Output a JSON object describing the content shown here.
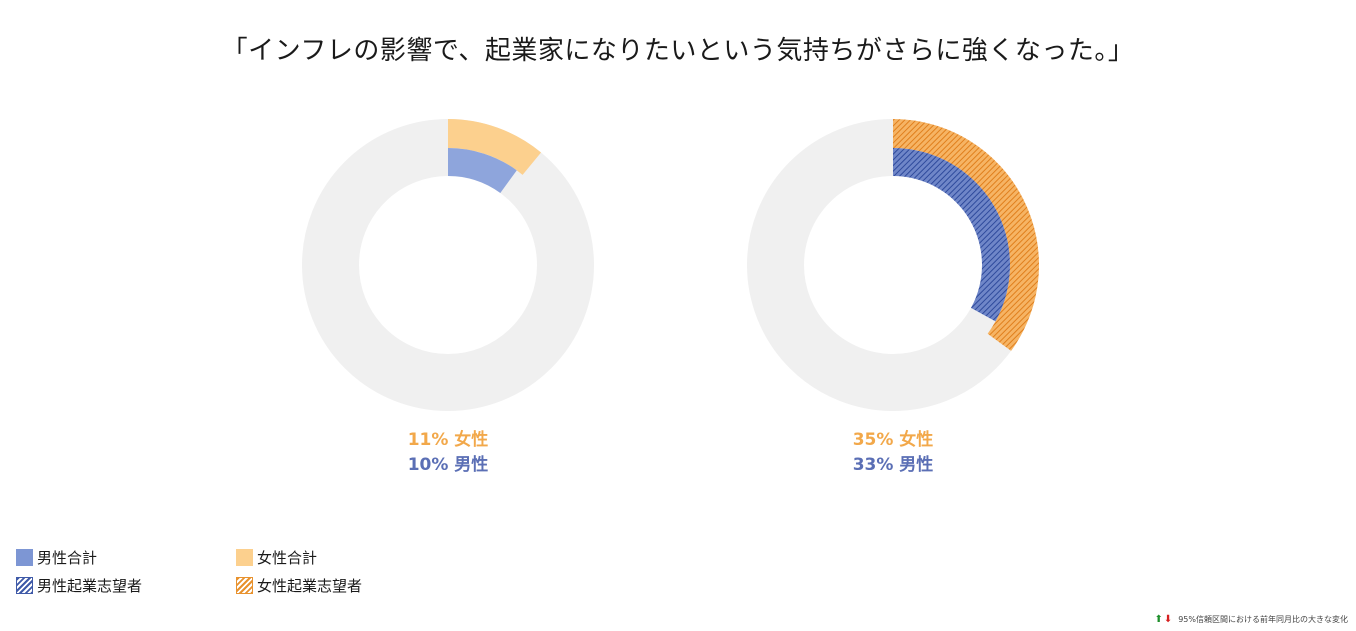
{
  "title": "「インフレの影響で、起業家になりたいという気持ちがさらに強くなった。」",
  "colors": {
    "male_total": "#8ea5dc",
    "female_total": "#fcd08e",
    "male_aspiring": "#3f5aa8",
    "female_aspiring": "#e8922e",
    "track": "#f0f0f0"
  },
  "chart_data": [
    {
      "type": "pie",
      "subtype": "donut",
      "series": [
        {
          "name": "女性合計",
          "ring": "outer",
          "value": 11
        },
        {
          "name": "男性合計",
          "ring": "inner",
          "value": 10
        }
      ],
      "labels": {
        "female": "11% 女性",
        "male": "10% 男性"
      }
    },
    {
      "type": "pie",
      "subtype": "donut",
      "series": [
        {
          "name": "女性起業志望者",
          "ring": "outer",
          "value": 35
        },
        {
          "name": "男性起業志望者",
          "ring": "inner",
          "value": 33
        }
      ],
      "labels": {
        "female": "35% 女性",
        "male": "33% 男性"
      }
    }
  ],
  "legend": {
    "male_total": "男性合計",
    "female_total": "女性合計",
    "male_aspiring": "男性起業志望者",
    "female_aspiring": "女性起業志望者"
  },
  "footnote": "95%信頼区間における前年同月比の大きな変化"
}
